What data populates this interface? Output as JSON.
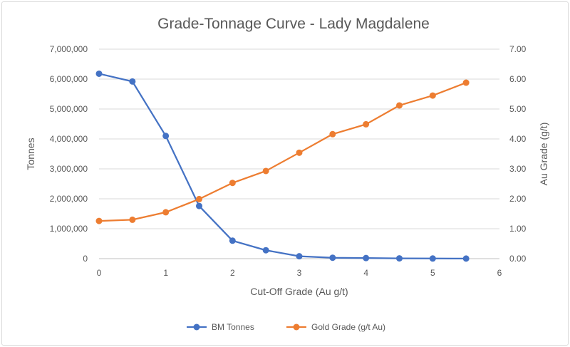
{
  "chart_data": {
    "type": "line",
    "title": "Grade-Tonnage Curve - Lady Magdalene",
    "xlabel": "Cut-Off Grade (Au g/t)",
    "ylabel": "Tonnes",
    "y2label": "Au Grade (g/t)",
    "xlim": [
      0,
      6
    ],
    "ylim": [
      0,
      7000000
    ],
    "y2lim": [
      0,
      7
    ],
    "x_ticks": [
      "0",
      "1",
      "2",
      "3",
      "4",
      "5",
      "6"
    ],
    "y_ticks": [
      "0",
      "1,000,000",
      "2,000,000",
      "3,000,000",
      "4,000,000",
      "5,000,000",
      "6,000,000",
      "7,000,000"
    ],
    "y2_ticks": [
      "0.00",
      "1.00",
      "2.00",
      "3.00",
      "4.00",
      "5.00",
      "6.00",
      "7.00"
    ],
    "grid": true,
    "legend_position": "bottom",
    "x": [
      0,
      0.5,
      1,
      1.5,
      2,
      2.5,
      3,
      3.5,
      4,
      4.5,
      5,
      5.5
    ],
    "series": [
      {
        "name": "BM Tonnes",
        "axis": "left",
        "color": "#4472c4",
        "values": [
          6180000,
          5920000,
          4100000,
          1760000,
          600000,
          280000,
          80000,
          30000,
          20000,
          10000,
          5000,
          3000
        ]
      },
      {
        "name": "Gold Grade (g/t Au)",
        "axis": "right",
        "color": "#ed7d31",
        "values": [
          1.26,
          1.3,
          1.55,
          1.99,
          2.53,
          2.93,
          3.54,
          4.16,
          4.49,
          5.12,
          5.45,
          5.88
        ]
      }
    ]
  }
}
